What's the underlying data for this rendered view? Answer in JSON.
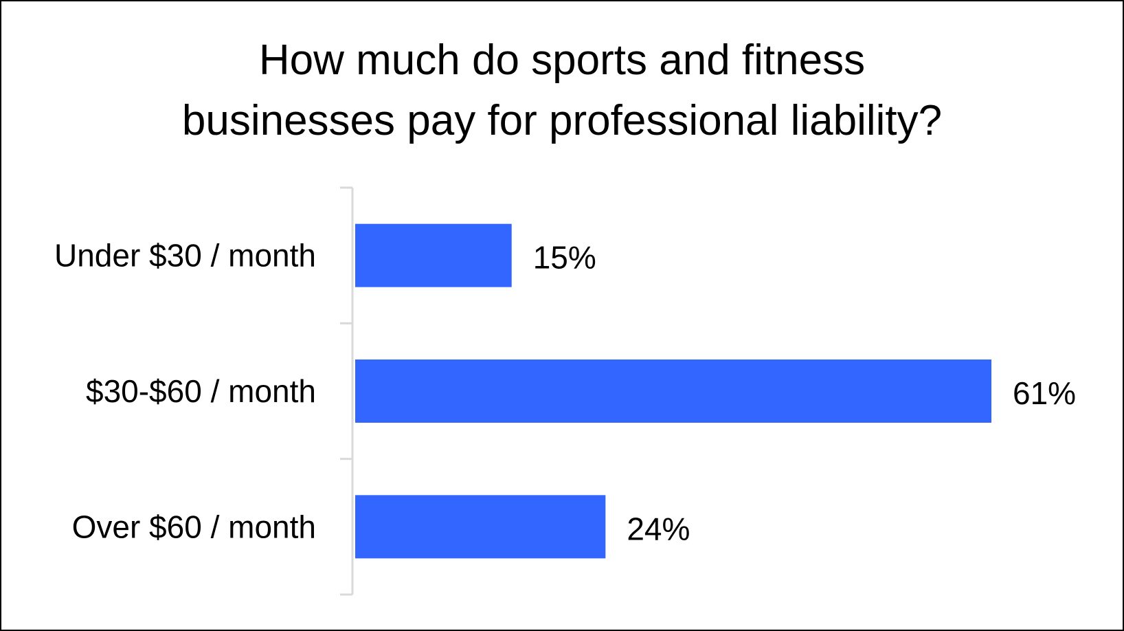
{
  "chart_data": {
    "type": "bar",
    "orientation": "horizontal",
    "title_lines": [
      "How much do sports and fitness",
      "businesses pay for professional liability?"
    ],
    "categories": [
      "Under $30 / month",
      "$30-$60 / month",
      "Over $60 / month"
    ],
    "values": [
      15,
      61,
      24
    ],
    "value_labels": [
      "15%",
      "61%",
      "24%"
    ],
    "xlim": [
      0,
      62
    ],
    "grid": false,
    "legend": "none",
    "bar_color": "#3366ff",
    "axis_color": "#d9d9d9"
  }
}
